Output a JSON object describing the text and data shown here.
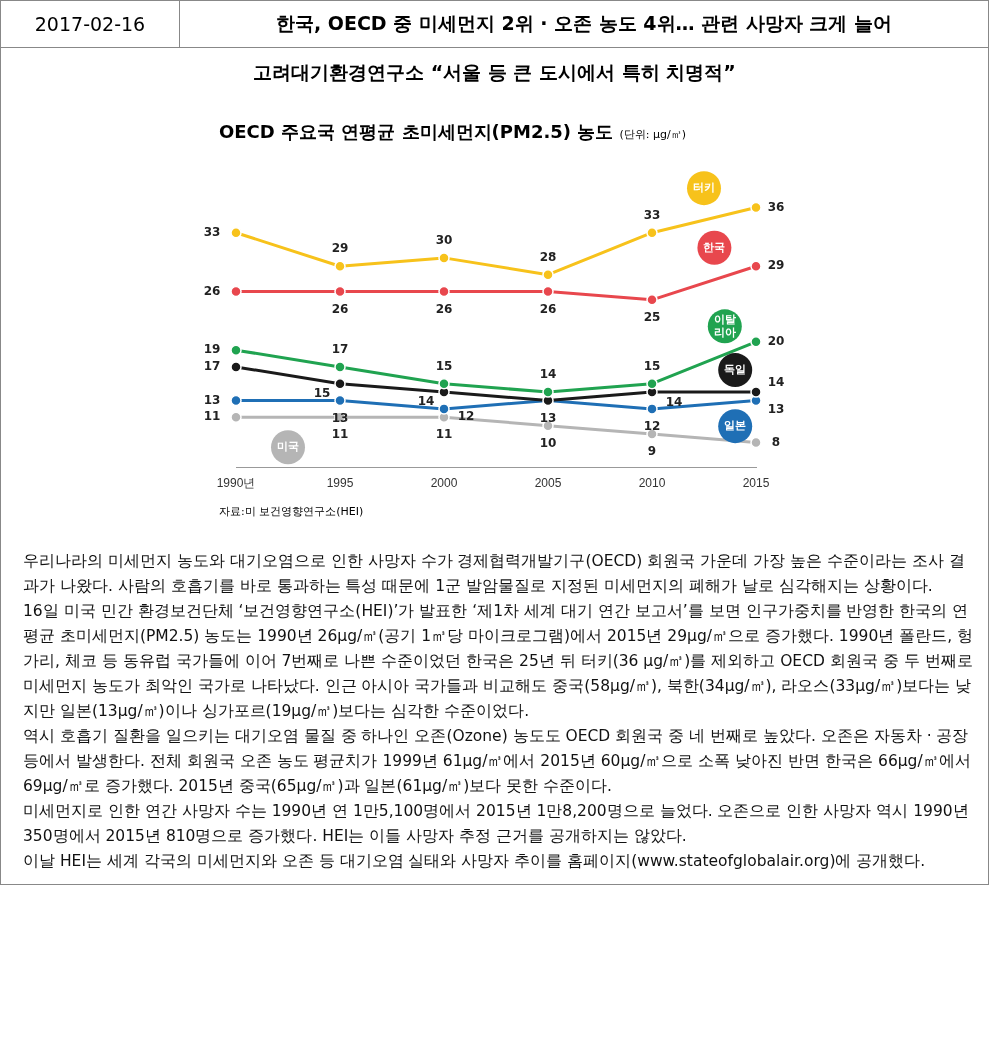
{
  "chart_data": {
    "type": "line",
    "title": "OECD 주요국 연평균 초미세먼지(PM2.5) 농도",
    "subtitle": "(단위: μg/㎥)",
    "categories": [
      "1990년",
      "1995",
      "2000",
      "2005",
      "2010",
      "2015"
    ],
    "tick_labels": "x",
    "grid": false,
    "legend": false,
    "marker": "circle",
    "line_style": "solid",
    "series": [
      {
        "name": "터키",
        "color": "#f7c21b",
        "values": [
          33,
          29,
          30,
          28,
          33,
          36
        ],
        "value_labels": [
          "33",
          "29",
          "30",
          "28",
          "33",
          "36"
        ]
      },
      {
        "name": "한국",
        "color": "#e8474d",
        "values": [
          26,
          26,
          26,
          26,
          25,
          29
        ],
        "value_labels": [
          "26",
          "26",
          "26",
          "26",
          "25",
          "29"
        ]
      },
      {
        "name": "이탈리아",
        "color": "#20a350",
        "values": [
          19,
          17,
          15,
          14,
          15,
          20
        ],
        "value_labels": [
          "19",
          "17",
          "15",
          "14",
          "15",
          "20"
        ]
      },
      {
        "name": "독일",
        "color": "#1a1a1a",
        "values": [
          17,
          15,
          14,
          13,
          14,
          14
        ],
        "value_labels": [
          "17",
          "15",
          "14",
          "13",
          "14",
          "14"
        ]
      },
      {
        "name": "일본",
        "color": "#1f6fb5",
        "values": [
          13,
          13,
          12,
          13,
          12,
          13
        ],
        "value_labels": [
          "13",
          "13",
          "12",
          null,
          "12",
          "13"
        ]
      },
      {
        "name": "미국",
        "color": "#b5b5b5",
        "values": [
          11,
          11,
          11,
          10,
          9,
          8
        ],
        "value_labels": [
          "11",
          "11",
          "11",
          "10",
          "9",
          "8"
        ]
      }
    ],
    "annotations": [
      "2017-02-16",
      "한국, OECD 중 미세먼지 2위 · 오존 농도 4위… 관련 사망자 크게 늘어",
      "고려대기환경연구소 “서울 등 큰 도시에서 특히 치명적”",
      "자료:미 보건영향연구소(HEI)",
      "우리나라의 미세먼지 농도와 대기오염으로 인한 사망자 수가 경제협력개발기구(OECD) 회원국 가운데 가장 높은 수준이라는 조사 결과가 나왔다. 사람의 호흡기를 바로 통과하는 특성 때문에 1군 발암물질로 지정된 미세먼지의 폐해가 날로 심각해지는 상황이다.",
      "16일 미국 민간 환경보건단체 ‘보건영향연구소(HEI)’가 발표한 ‘제1차 세계 대기 연간 보고서’를 보면 인구가중치를 반영한 한국의 연평균 초미세먼지(PM2.5) 농도는 1990년 26μg/㎥(공기 1㎥당 마이크로그램)에서 2015년 29μg/㎥으로 증가했다. 1990년 폴란드, 헝가리, 체코 등 동유럽 국가들에 이어 7번째로 나쁜 수준이었던 한국은 25년 뒤 터키(36 μg/㎥)를 제외하고 OECD 회원국 중 두 번째로 미세먼지 농도가 최악인 국가로 나타났다. 인근 아시아 국가들과 비교해도 중국(58μg/㎥), 북한(34μg/㎥), 라오스(33μg/㎥)보다는 낮지만 일본(13μg/㎥)이나 싱가포르(19μg/㎥)보다는 심각한 수준이었다.",
      "역시 호흡기 질환을 일으키는 대기오염 물질 중 하나인 오존(Ozone) 농도도 OECD 회원국 중 네 번째로 높았다. 오존은 자동차 · 공장 등에서 발생한다. 전체 회원국 오존 농도 평균치가 1999년 61μg/㎥에서 2015년 60μg/㎥으로 소폭 낮아진 반면 한국은 66μg/㎥에서 69μg/㎥로 증가했다. 2015년 중국(65μg/㎥)과 일본(61μg/㎥)보다 못한 수준이다.",
      "미세먼지로 인한 연간 사망자 수는 1990년 연 1만5,100명에서 2015년 1만8,200명으로 늘었다. 오존으로 인한 사망자 역시 1990년 350명에서 2015년 810명으로 증가했다. HEI는 이들 사망자 추정 근거를 공개하지는 않았다.",
      "이날 HEI는 세계 각국의 미세먼지와 오존 등 대기오염 실태와 사망자 추이를 홈페이지(www.stateofglobalair.org)에 공개했다."
    ]
  }
}
